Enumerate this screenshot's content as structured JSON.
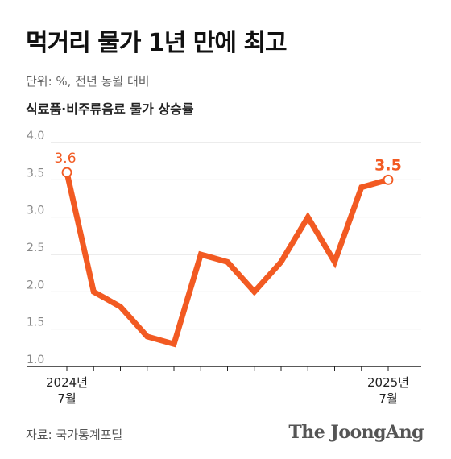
{
  "header": {
    "title": "먹거리 물가 1년 만에 최고",
    "subtitle": "단위: %, 전년 동월 대비"
  },
  "footer": {
    "source": "자료: 국가통계포털",
    "brand": "The JoongAng"
  },
  "chart_data": {
    "type": "line",
    "title": "식료품·비주류음료 물가 상승률",
    "unit": "%",
    "x": [
      "2024-07",
      "2024-08",
      "2024-09",
      "2024-10",
      "2024-11",
      "2024-12",
      "2025-01",
      "2025-02",
      "2025-03",
      "2025-04",
      "2025-05",
      "2025-06",
      "2025-07"
    ],
    "x_tick_labels": [
      {
        "index": 0,
        "lines": [
          "2024년",
          "7월"
        ]
      },
      {
        "index": 12,
        "lines": [
          "2025년",
          "7월"
        ]
      }
    ],
    "series": [
      {
        "values": [
          3.6,
          2.0,
          1.8,
          1.4,
          1.3,
          2.5,
          2.4,
          2.0,
          2.4,
          3.0,
          2.4,
          3.4,
          3.5
        ],
        "color": "#f25a22"
      }
    ],
    "data_labels": [
      {
        "index": 0,
        "text": "3.6"
      },
      {
        "index": 12,
        "text": "3.5"
      }
    ],
    "y_ticks": [
      "1.0",
      "1.5",
      "2.0",
      "2.5",
      "3.0",
      "3.5",
      "4.0"
    ],
    "ylim": [
      1.0,
      4.0
    ],
    "grid": true,
    "colors": {
      "line": "#f25a22",
      "grid": "#d9d9d9",
      "axis": "#222222"
    }
  }
}
